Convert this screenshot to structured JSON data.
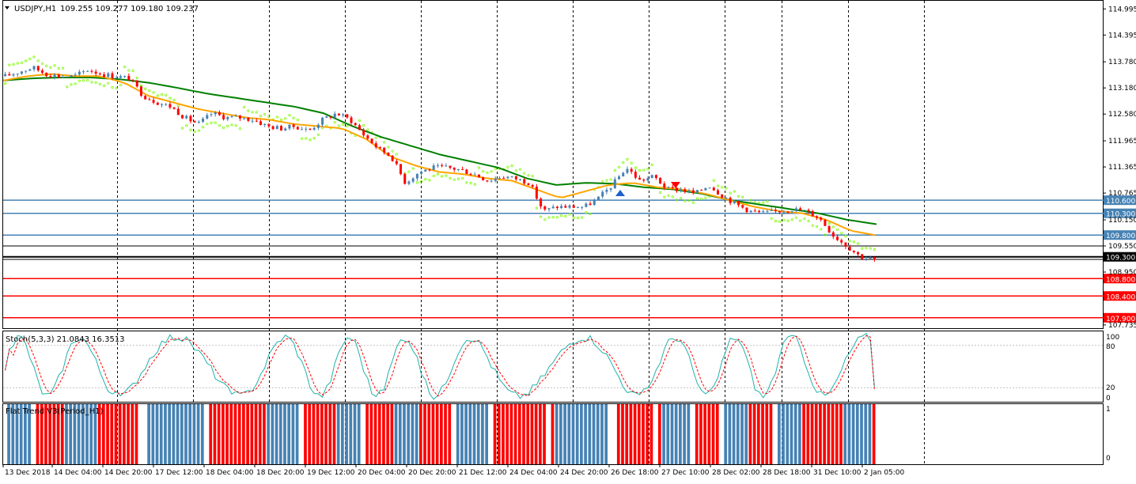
{
  "header": {
    "symbol_label": "USDJPY,H1",
    "ohlc_text": "109.255 109.277 109.180 109.237"
  },
  "price_axis": {
    "ticks": [
      "114.995",
      "114.395",
      "113.780",
      "113.180",
      "112.580",
      "111.965",
      "111.365",
      "110.765",
      "110.150",
      "109.550",
      "108.950",
      "107.735"
    ],
    "current_price": "109.300"
  },
  "levels": [
    {
      "label": "110.600",
      "price": 110.6,
      "color": "#4682b4"
    },
    {
      "label": "110.300",
      "price": 110.3,
      "color": "#4682b4"
    },
    {
      "label": "109.800",
      "price": 109.8,
      "color": "#4682b4"
    },
    {
      "label": "108.800",
      "price": 108.8,
      "color": "#ff0000"
    },
    {
      "label": "108.400",
      "price": 108.4,
      "color": "#ff0000"
    },
    {
      "label": "107.900",
      "price": 107.9,
      "color": "#ff0000"
    }
  ],
  "time_axis": {
    "labels": [
      "13 Dec 2018",
      "14 Dec 04:00",
      "14 Dec 20:00",
      "17 Dec 12:00",
      "18 Dec 04:00",
      "18 Dec 20:00",
      "19 Dec 12:00",
      "20 Dec 04:00",
      "20 Dec 20:00",
      "21 Dec 12:00",
      "24 Dec 04:00",
      "24 Dec 20:00",
      "26 Dec 18:00",
      "27 Dec 10:00",
      "28 Dec 02:00",
      "28 Dec 18:00",
      "31 Dec 10:00",
      "2 Jan 05:00"
    ]
  },
  "stoch_panel": {
    "title": "Stoch(5,3,3) 21.0843 16.3513",
    "scale_labels": [
      "100",
      "80",
      "20",
      "0"
    ]
  },
  "trend_panel": {
    "title": "Flat Trend V3(Period_H1)",
    "scale_labels": [
      "1",
      "0"
    ]
  },
  "colors": {
    "bull": "#4682b4",
    "bear": "#ff0000",
    "fast_ma": "#ffa500",
    "slow_ma": "#008000",
    "sar": "#7cfc00",
    "stoch_main": "#20b2aa",
    "stoch_signal": "#ff0000",
    "grid": "#000000"
  },
  "chart_data": {
    "type": "candlestick",
    "symbol": "USDJPY",
    "timeframe": "H1",
    "x": [
      "13 Dec 2018",
      "14 Dec 04:00",
      "14 Dec 20:00",
      "17 Dec 12:00",
      "18 Dec 04:00",
      "18 Dec 20:00",
      "19 Dec 12:00",
      "20 Dec 04:00",
      "20 Dec 20:00",
      "21 Dec 12:00",
      "24 Dec 04:00",
      "24 Dec 20:00",
      "26 Dec 18:00",
      "27 Dec 10:00",
      "28 Dec 02:00",
      "28 Dec 18:00",
      "31 Dec 10:00",
      "2 Jan 05:00"
    ],
    "close_path": [
      113.45,
      113.55,
      113.65,
      113.5,
      113.45,
      113.45,
      113.6,
      113.5,
      113.45,
      113.4,
      113.0,
      112.85,
      112.75,
      112.5,
      112.35,
      112.6,
      112.5,
      112.5,
      112.45,
      112.3,
      112.25,
      112.3,
      112.2,
      112.45,
      112.6,
      112.45,
      112.1,
      111.8,
      111.6,
      111.0,
      111.25,
      111.35,
      111.35,
      111.3,
      111.2,
      111.05,
      111.15,
      111.1,
      111.0,
      110.35,
      110.45,
      110.45,
      110.45,
      110.65,
      110.95,
      111.35,
      111.05,
      111.15,
      110.85,
      110.85,
      110.75,
      110.95,
      110.7,
      110.5,
      110.35,
      110.3,
      110.35,
      110.4,
      110.35,
      110.2,
      109.8,
      109.55,
      109.3,
      109.24
    ],
    "fast_ma": [
      113.35,
      113.45,
      113.5,
      113.45,
      113.45,
      113.3,
      113.0,
      112.85,
      112.7,
      112.6,
      112.5,
      112.45,
      112.35,
      112.3,
      112.25,
      112.0,
      111.6,
      111.4,
      111.25,
      111.2,
      111.1,
      111.05,
      110.85,
      110.65,
      110.8,
      110.95,
      111.0,
      110.9,
      110.85,
      110.75,
      110.6,
      110.45,
      110.35,
      110.3,
      110.15,
      109.9,
      109.8
    ],
    "slow_ma": [
      113.35,
      113.4,
      113.42,
      113.42,
      113.38,
      113.3,
      113.18,
      113.05,
      112.95,
      112.85,
      112.75,
      112.6,
      112.3,
      112.05,
      111.85,
      111.65,
      111.5,
      111.35,
      111.1,
      110.95,
      111.0,
      110.98,
      110.9,
      110.85,
      110.75,
      110.6,
      110.5,
      110.4,
      110.3,
      110.15,
      110.05
    ],
    "hlines": [
      110.6,
      110.3,
      109.8,
      109.3,
      108.8,
      108.4,
      107.9
    ],
    "last_close": 109.237,
    "ylim": [
      107.66,
      115.2
    ],
    "stochastic": {
      "k": 21.0843,
      "d": 16.3513,
      "levels": [
        80,
        20
      ],
      "ylim": [
        0,
        100
      ]
    },
    "flat_trend": {
      "ylim": [
        0,
        1
      ]
    }
  }
}
